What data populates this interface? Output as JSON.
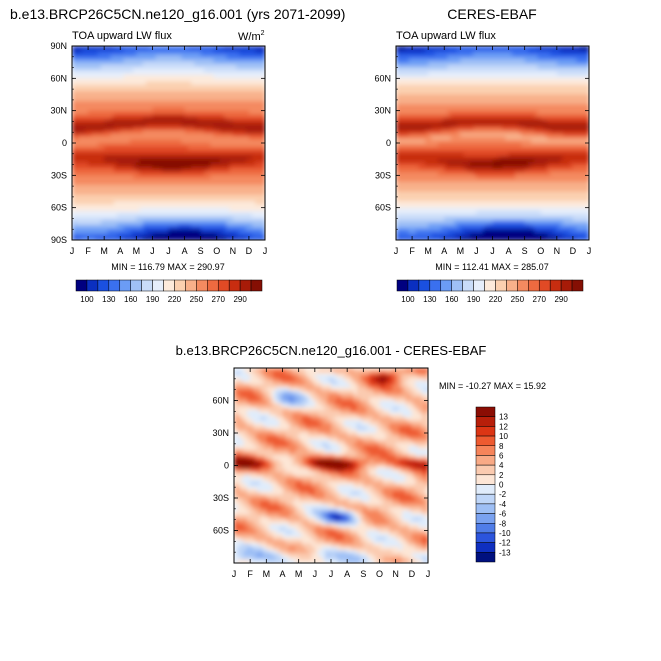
{
  "chart_data": [
    {
      "type": "heatmap",
      "title": "b.e13.BRCP26C5CN.ne120_g16.001 (yrs 2071-2099)",
      "subtitle_left": "TOA upward LW flux",
      "units": "W/m",
      "units_superscript": "2",
      "x_ticks": [
        "J",
        "F",
        "M",
        "A",
        "M",
        "J",
        "J",
        "A",
        "S",
        "O",
        "N",
        "D",
        "J"
      ],
      "y_ticks": [
        "90N",
        "60N",
        "30N",
        "0",
        "30S",
        "60S",
        "90S"
      ],
      "stats": "MIN = 116.79 MAX = 290.97",
      "colorbar_labels": [
        "100",
        "130",
        "160",
        "190",
        "220",
        "250",
        "270",
        "290"
      ],
      "colorbar_colors": [
        "#000080",
        "#0a2fc0",
        "#1a50e0",
        "#3a70ef",
        "#6b9cf5",
        "#9fc0f6",
        "#c9dcf9",
        "#e6eefb",
        "#fdeadb",
        "#fbd0b0",
        "#f8b08a",
        "#f48a60",
        "#ee6a40",
        "#e14a25",
        "#c82d10",
        "#a71b08",
        "#850f04"
      ],
      "ylim": [
        -90,
        90
      ],
      "xlim": [
        1,
        13
      ]
    },
    {
      "type": "heatmap",
      "title": "CERES-EBAF",
      "subtitle_left": "TOA upward LW flux",
      "x_ticks": [
        "J",
        "F",
        "M",
        "A",
        "M",
        "J",
        "J",
        "A",
        "S",
        "O",
        "N",
        "D",
        "J"
      ],
      "y_ticks": [
        "60N",
        "30N",
        "0",
        "30S",
        "60S"
      ],
      "stats": "MIN = 112.41 MAX = 285.07",
      "colorbar_labels": [
        "100",
        "130",
        "160",
        "190",
        "220",
        "250",
        "270",
        "290"
      ],
      "ylim": [
        -90,
        90
      ],
      "xlim": [
        1,
        13
      ]
    },
    {
      "type": "heatmap",
      "title": "b.e13.BRCP26C5CN.ne120_g16.001 - CERES-EBAF",
      "x_ticks": [
        "J",
        "F",
        "M",
        "A",
        "M",
        "J",
        "J",
        "A",
        "S",
        "O",
        "N",
        "D",
        "J"
      ],
      "y_ticks": [
        "60N",
        "30N",
        "0",
        "30S",
        "60S"
      ],
      "stats": "MIN = -10.27 MAX =  15.92",
      "colorbar_labels": [
        "13",
        "12",
        "10",
        "8",
        "6",
        "4",
        "2",
        "0",
        "-2",
        "-4",
        "-6",
        "-8",
        "-10",
        "-12",
        "-13"
      ],
      "colorbar_colors": [
        "#8b0d04",
        "#b81f0a",
        "#dc3514",
        "#ee5a30",
        "#f6845a",
        "#f9aa86",
        "#fbcbb0",
        "#fde6d6",
        "#e0ecfb",
        "#bfd6f8",
        "#9ebff5",
        "#7aa2f0",
        "#507de8",
        "#2c55dd",
        "#0f2fc0",
        "#00107f"
      ],
      "ylim": [
        -90,
        90
      ],
      "xlim": [
        1,
        13
      ]
    }
  ]
}
